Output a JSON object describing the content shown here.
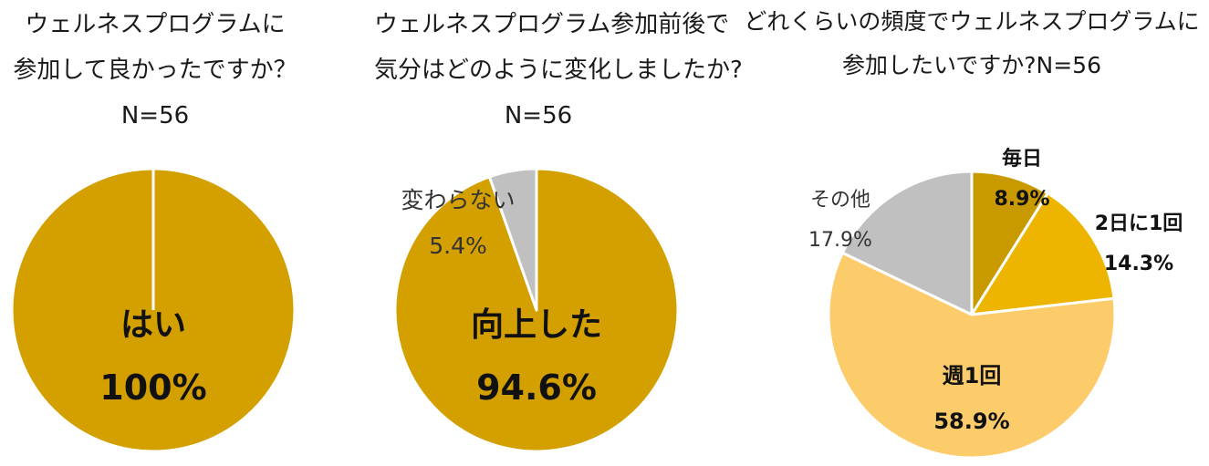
{
  "chart_data": [
    {
      "type": "pie",
      "title_lines": [
        "ウェルネスプログラムに",
        "参加して良かったですか？",
        "N=56"
      ],
      "slices": [
        {
          "label": "はい",
          "value": 100.0,
          "value_label": "100%",
          "color": "#D4A000"
        }
      ]
    },
    {
      "type": "pie",
      "title_lines": [
        "ウェルネスプログラム参加前後で",
        "気分はどのように変化しましたか?",
        "N=56"
      ],
      "slices": [
        {
          "label": "向上した",
          "value": 94.6,
          "value_label": "94.6%",
          "color": "#D4A000"
        },
        {
          "label": "変わらない",
          "value": 5.4,
          "value_label": "5.4%",
          "color": "#C0C0C0"
        }
      ]
    },
    {
      "type": "pie",
      "title_lines": [
        "どれくらいの頻度でウェルネスプログラムに",
        "参加したいですか?N=56"
      ],
      "slices": [
        {
          "label": "毎日",
          "value": 8.9,
          "value_label": "8.9%",
          "color": "#C89A00"
        },
        {
          "label": "2日に1回",
          "value": 14.3,
          "value_label": "14.3%",
          "color": "#EDB500"
        },
        {
          "label": "週1回",
          "value": 58.9,
          "value_label": "58.9%",
          "color": "#FCCB6A"
        },
        {
          "label": "その他",
          "value": 17.9,
          "value_label": "17.9%",
          "color": "#C0C0C0"
        }
      ]
    }
  ]
}
